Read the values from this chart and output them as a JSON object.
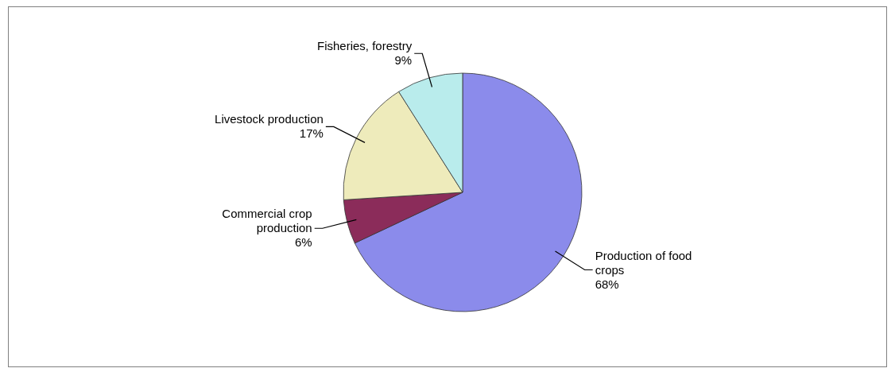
{
  "chart_data": {
    "type": "pie",
    "categories": [
      "Production of food crops",
      "Commercial crop production",
      "Livestock production",
      "Fisheries, forestry"
    ],
    "values": [
      68,
      6,
      17,
      9
    ],
    "colors": [
      "#8b8beb",
      "#8b2c5a",
      "#eeebbb",
      "#b9ecec"
    ],
    "value_labels": [
      "68%",
      "6%",
      "17%",
      "9%"
    ]
  }
}
